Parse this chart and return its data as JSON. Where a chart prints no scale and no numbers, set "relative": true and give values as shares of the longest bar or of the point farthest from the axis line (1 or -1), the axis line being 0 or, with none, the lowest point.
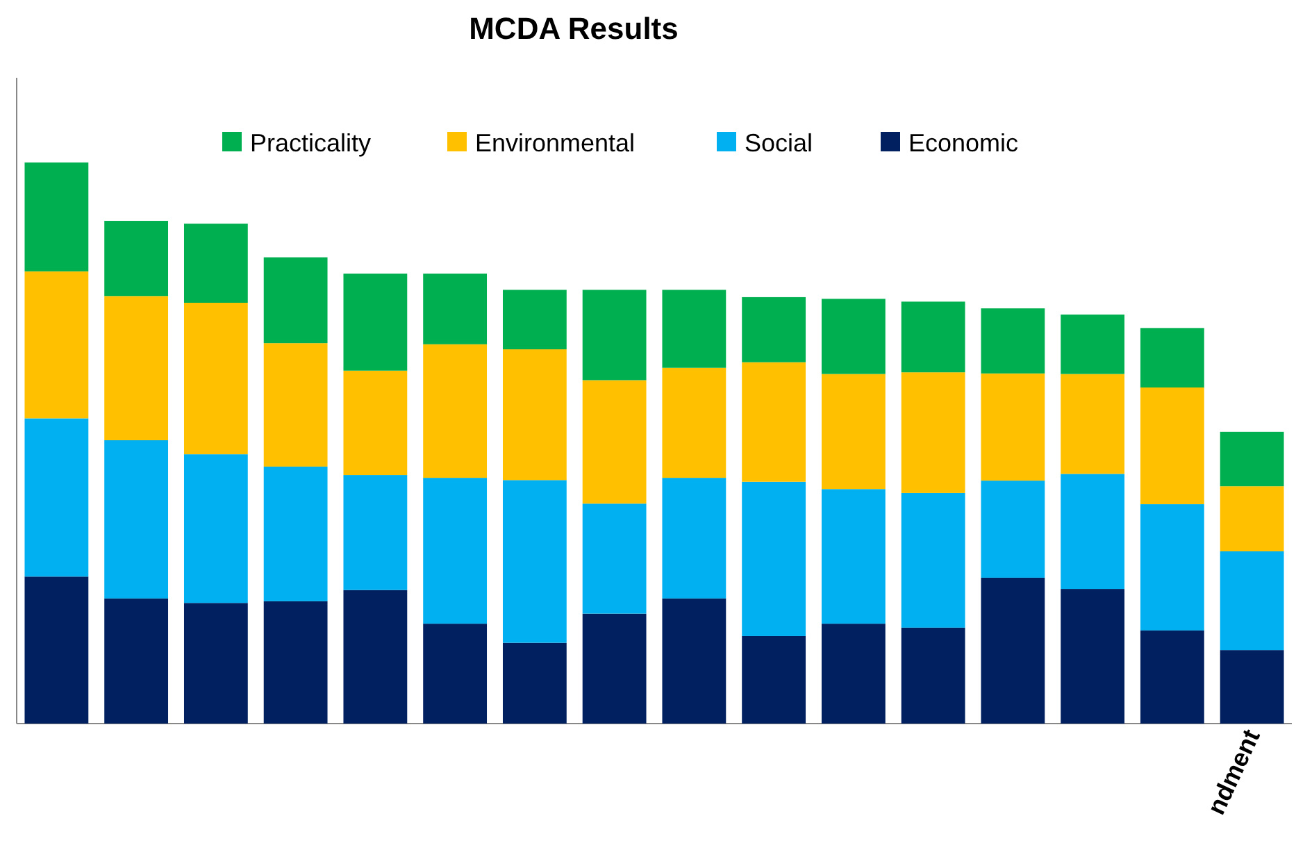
{
  "chart_data": {
    "type": "bar",
    "title": "MCDA Results",
    "stacked": true,
    "relative": true,
    "legend": "top",
    "categories": [
      null,
      null,
      null,
      null,
      null,
      null,
      null,
      null,
      null,
      null,
      null,
      null,
      null,
      null,
      null,
      "ndment"
    ],
    "series": [
      {
        "name": "Economic",
        "color": "#002060",
        "values": [
          0.262,
          0.223,
          0.215,
          0.218,
          0.238,
          0.178,
          0.144,
          0.196,
          0.223,
          0.156,
          0.178,
          0.171,
          0.26,
          0.24,
          0.166,
          0.131
        ]
      },
      {
        "name": "Social",
        "color": "#00b0f0",
        "values": [
          0.282,
          0.282,
          0.265,
          0.24,
          0.205,
          0.26,
          0.29,
          0.196,
          0.215,
          0.275,
          0.24,
          0.24,
          0.173,
          0.205,
          0.225,
          0.176
        ]
      },
      {
        "name": "Environmental",
        "color": "#ffc000",
        "values": [
          0.262,
          0.257,
          0.27,
          0.22,
          0.186,
          0.238,
          0.233,
          0.22,
          0.196,
          0.213,
          0.205,
          0.215,
          0.191,
          0.178,
          0.208,
          0.116
        ]
      },
      {
        "name": "Practicality",
        "color": "#00b050",
        "values": [
          0.194,
          0.134,
          0.141,
          0.153,
          0.173,
          0.126,
          0.106,
          0.161,
          0.139,
          0.116,
          0.134,
          0.126,
          0.116,
          0.106,
          0.106,
          0.097
        ]
      }
    ]
  }
}
